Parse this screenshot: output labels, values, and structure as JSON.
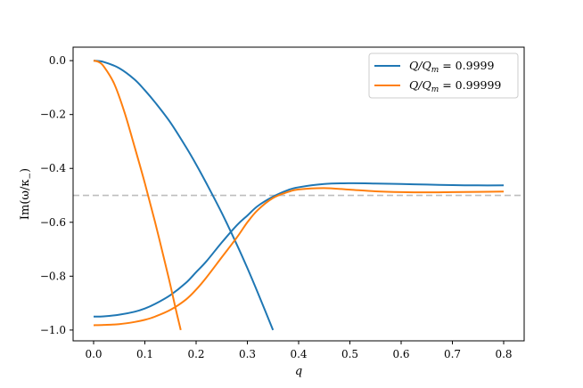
{
  "chart_data": {
    "type": "line",
    "xlabel": "q",
    "ylabel": "Im(ω/κ₋)",
    "xlim": [
      -0.04,
      0.84
    ],
    "ylim": [
      -1.04,
      0.05
    ],
    "xticks": [
      "0.0",
      "0.1",
      "0.2",
      "0.3",
      "0.4",
      "0.5",
      "0.6",
      "0.7",
      "0.8"
    ],
    "yticks": [
      "0.0",
      "−0.2",
      "−0.4",
      "−0.6",
      "−0.8",
      "−1.0"
    ],
    "grid": false,
    "legend_position": "top-right",
    "reference_line": {
      "y": -0.5,
      "style": "dashed",
      "color": "#bdbdbd"
    },
    "series": [
      {
        "name": "Q/Qm = 0.9999",
        "color": "#1f77b4",
        "curves": [
          {
            "x": [
              0.0,
              0.02,
              0.05,
              0.08,
              0.1,
              0.12,
              0.15,
              0.18,
              0.2,
              0.22,
              0.25,
              0.28,
              0.3,
              0.32,
              0.35
            ],
            "y": [
              0.0,
              -0.005,
              -0.028,
              -0.07,
              -0.11,
              -0.155,
              -0.23,
              -0.32,
              -0.385,
              -0.455,
              -0.565,
              -0.685,
              -0.77,
              -0.86,
              -1.0
            ]
          },
          {
            "x": [
              0.0,
              0.02,
              0.05,
              0.08,
              0.1,
              0.12,
              0.15,
              0.18,
              0.2,
              0.22,
              0.25,
              0.28,
              0.3,
              0.32,
              0.35,
              0.38,
              0.4,
              0.45,
              0.5,
              0.55,
              0.6,
              0.65,
              0.7,
              0.75,
              0.8
            ],
            "y": [
              -0.95,
              -0.949,
              -0.943,
              -0.932,
              -0.92,
              -0.903,
              -0.87,
              -0.825,
              -0.785,
              -0.745,
              -0.675,
              -0.61,
              -0.575,
              -0.54,
              -0.505,
              -0.48,
              -0.47,
              -0.458,
              -0.455,
              -0.456,
              -0.458,
              -0.46,
              -0.462,
              -0.463,
              -0.463
            ]
          }
        ]
      },
      {
        "name": "Q/Qm = 0.99999",
        "color": "#ff7f0e",
        "curves": [
          {
            "x": [
              0.0,
              0.01,
              0.02,
              0.04,
              0.06,
              0.08,
              0.1,
              0.12,
              0.14,
              0.15,
              0.16,
              0.17
            ],
            "y": [
              0.0,
              -0.005,
              -0.022,
              -0.085,
              -0.19,
              -0.32,
              -0.455,
              -0.6,
              -0.755,
              -0.835,
              -0.92,
              -1.0
            ]
          },
          {
            "x": [
              0.0,
              0.02,
              0.05,
              0.08,
              0.1,
              0.12,
              0.15,
              0.18,
              0.2,
              0.22,
              0.25,
              0.28,
              0.3,
              0.32,
              0.35,
              0.38,
              0.4,
              0.45,
              0.5,
              0.55,
              0.6,
              0.65,
              0.7,
              0.75,
              0.8
            ],
            "y": [
              -0.982,
              -0.981,
              -0.978,
              -0.97,
              -0.962,
              -0.95,
              -0.925,
              -0.887,
              -0.85,
              -0.805,
              -0.73,
              -0.655,
              -0.6,
              -0.555,
              -0.51,
              -0.487,
              -0.478,
              -0.473,
              -0.479,
              -0.485,
              -0.488,
              -0.489,
              -0.488,
              -0.487,
              -0.486
            ]
          }
        ]
      }
    ]
  },
  "legend": {
    "entry1": {
      "main": "Q/Q",
      "sub": "m",
      "rest": " = 0.9999"
    },
    "entry2": {
      "main": "Q/Q",
      "sub": "m",
      "rest": " = 0.99999"
    }
  },
  "axes_text": {
    "xlabel": "q",
    "ylabel_pre": "Im(ω/κ",
    "ylabel_sub": "−",
    "ylabel_post": ")"
  }
}
